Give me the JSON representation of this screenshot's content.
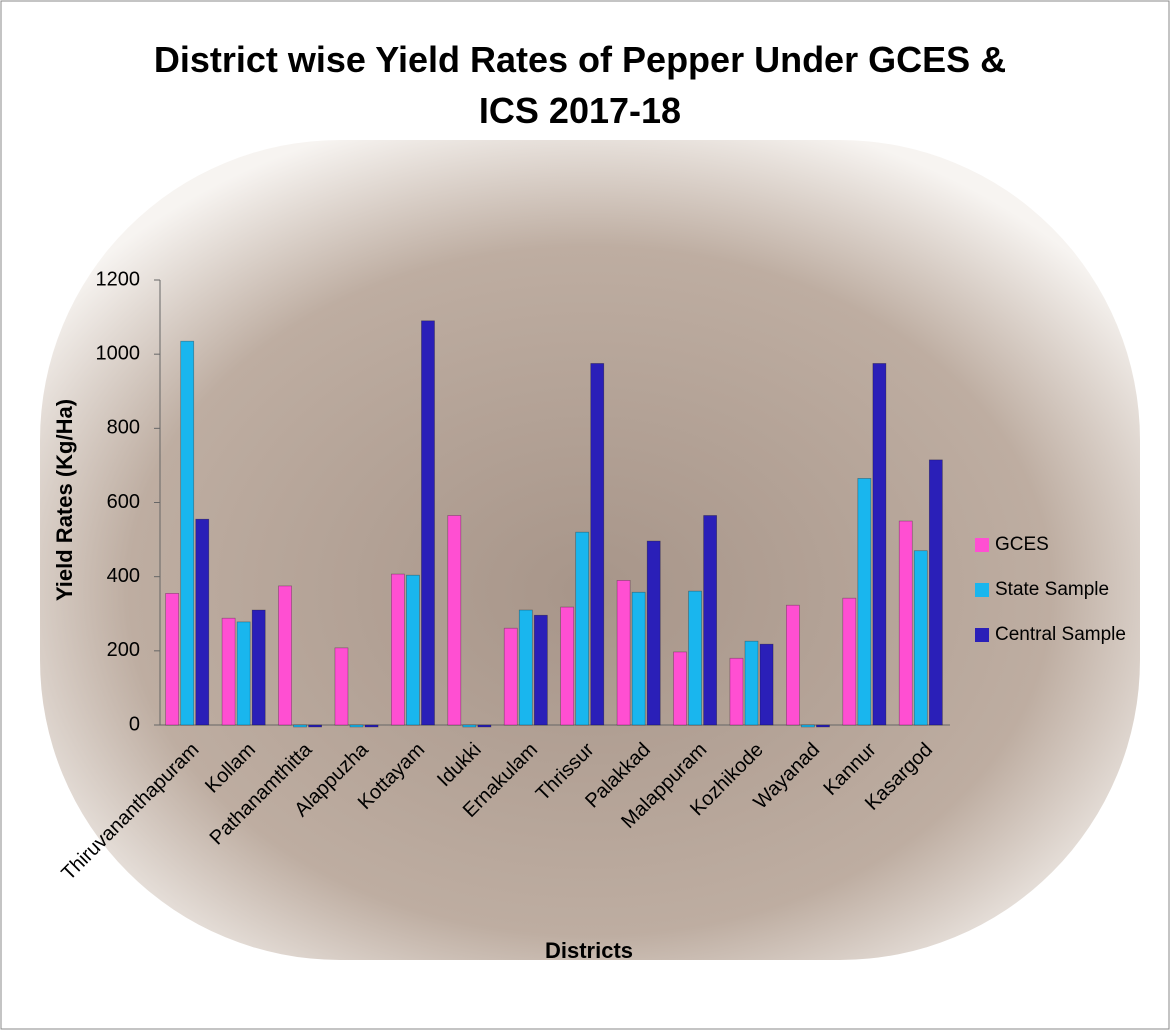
{
  "chart_data": {
    "type": "bar",
    "title": "District wise Yield Rates of Pepper Under GCES & ICS 2017-18",
    "x_label": "Districts",
    "y_label": "Yield Rates (Kg/Ha)",
    "categories": [
      "Thiruvananthapuram",
      "Kollam",
      "Pathanamthitta",
      "Alappuzha",
      "Kottayam",
      "Idukki",
      "Ernakulam",
      "Thrissur",
      "Palakkad",
      "Malappuram",
      "Kozhikode",
      "Wayanad",
      "Kannur",
      "Kasargod"
    ],
    "series": [
      {
        "name": "GCES",
        "color": "#ff4fd2",
        "values": [
          355,
          288,
          375,
          208,
          407,
          565,
          261,
          318,
          390,
          197,
          180,
          323,
          342,
          550
        ]
      },
      {
        "name": "State Sample",
        "color": "#19b6ee",
        "values": [
          1035,
          278,
          0,
          0,
          404,
          0,
          310,
          520,
          358,
          361,
          226,
          0,
          665,
          470
        ]
      },
      {
        "name": "Central Sample",
        "color": "#2a1fb8",
        "values": [
          555,
          310,
          0,
          0,
          1090,
          0,
          296,
          975,
          496,
          565,
          218,
          0,
          975,
          715
        ]
      }
    ],
    "ylim": [
      0,
      1200
    ],
    "yticks": [
      0,
      200,
      400,
      600,
      800,
      1000,
      1200
    ],
    "legend": "right"
  }
}
